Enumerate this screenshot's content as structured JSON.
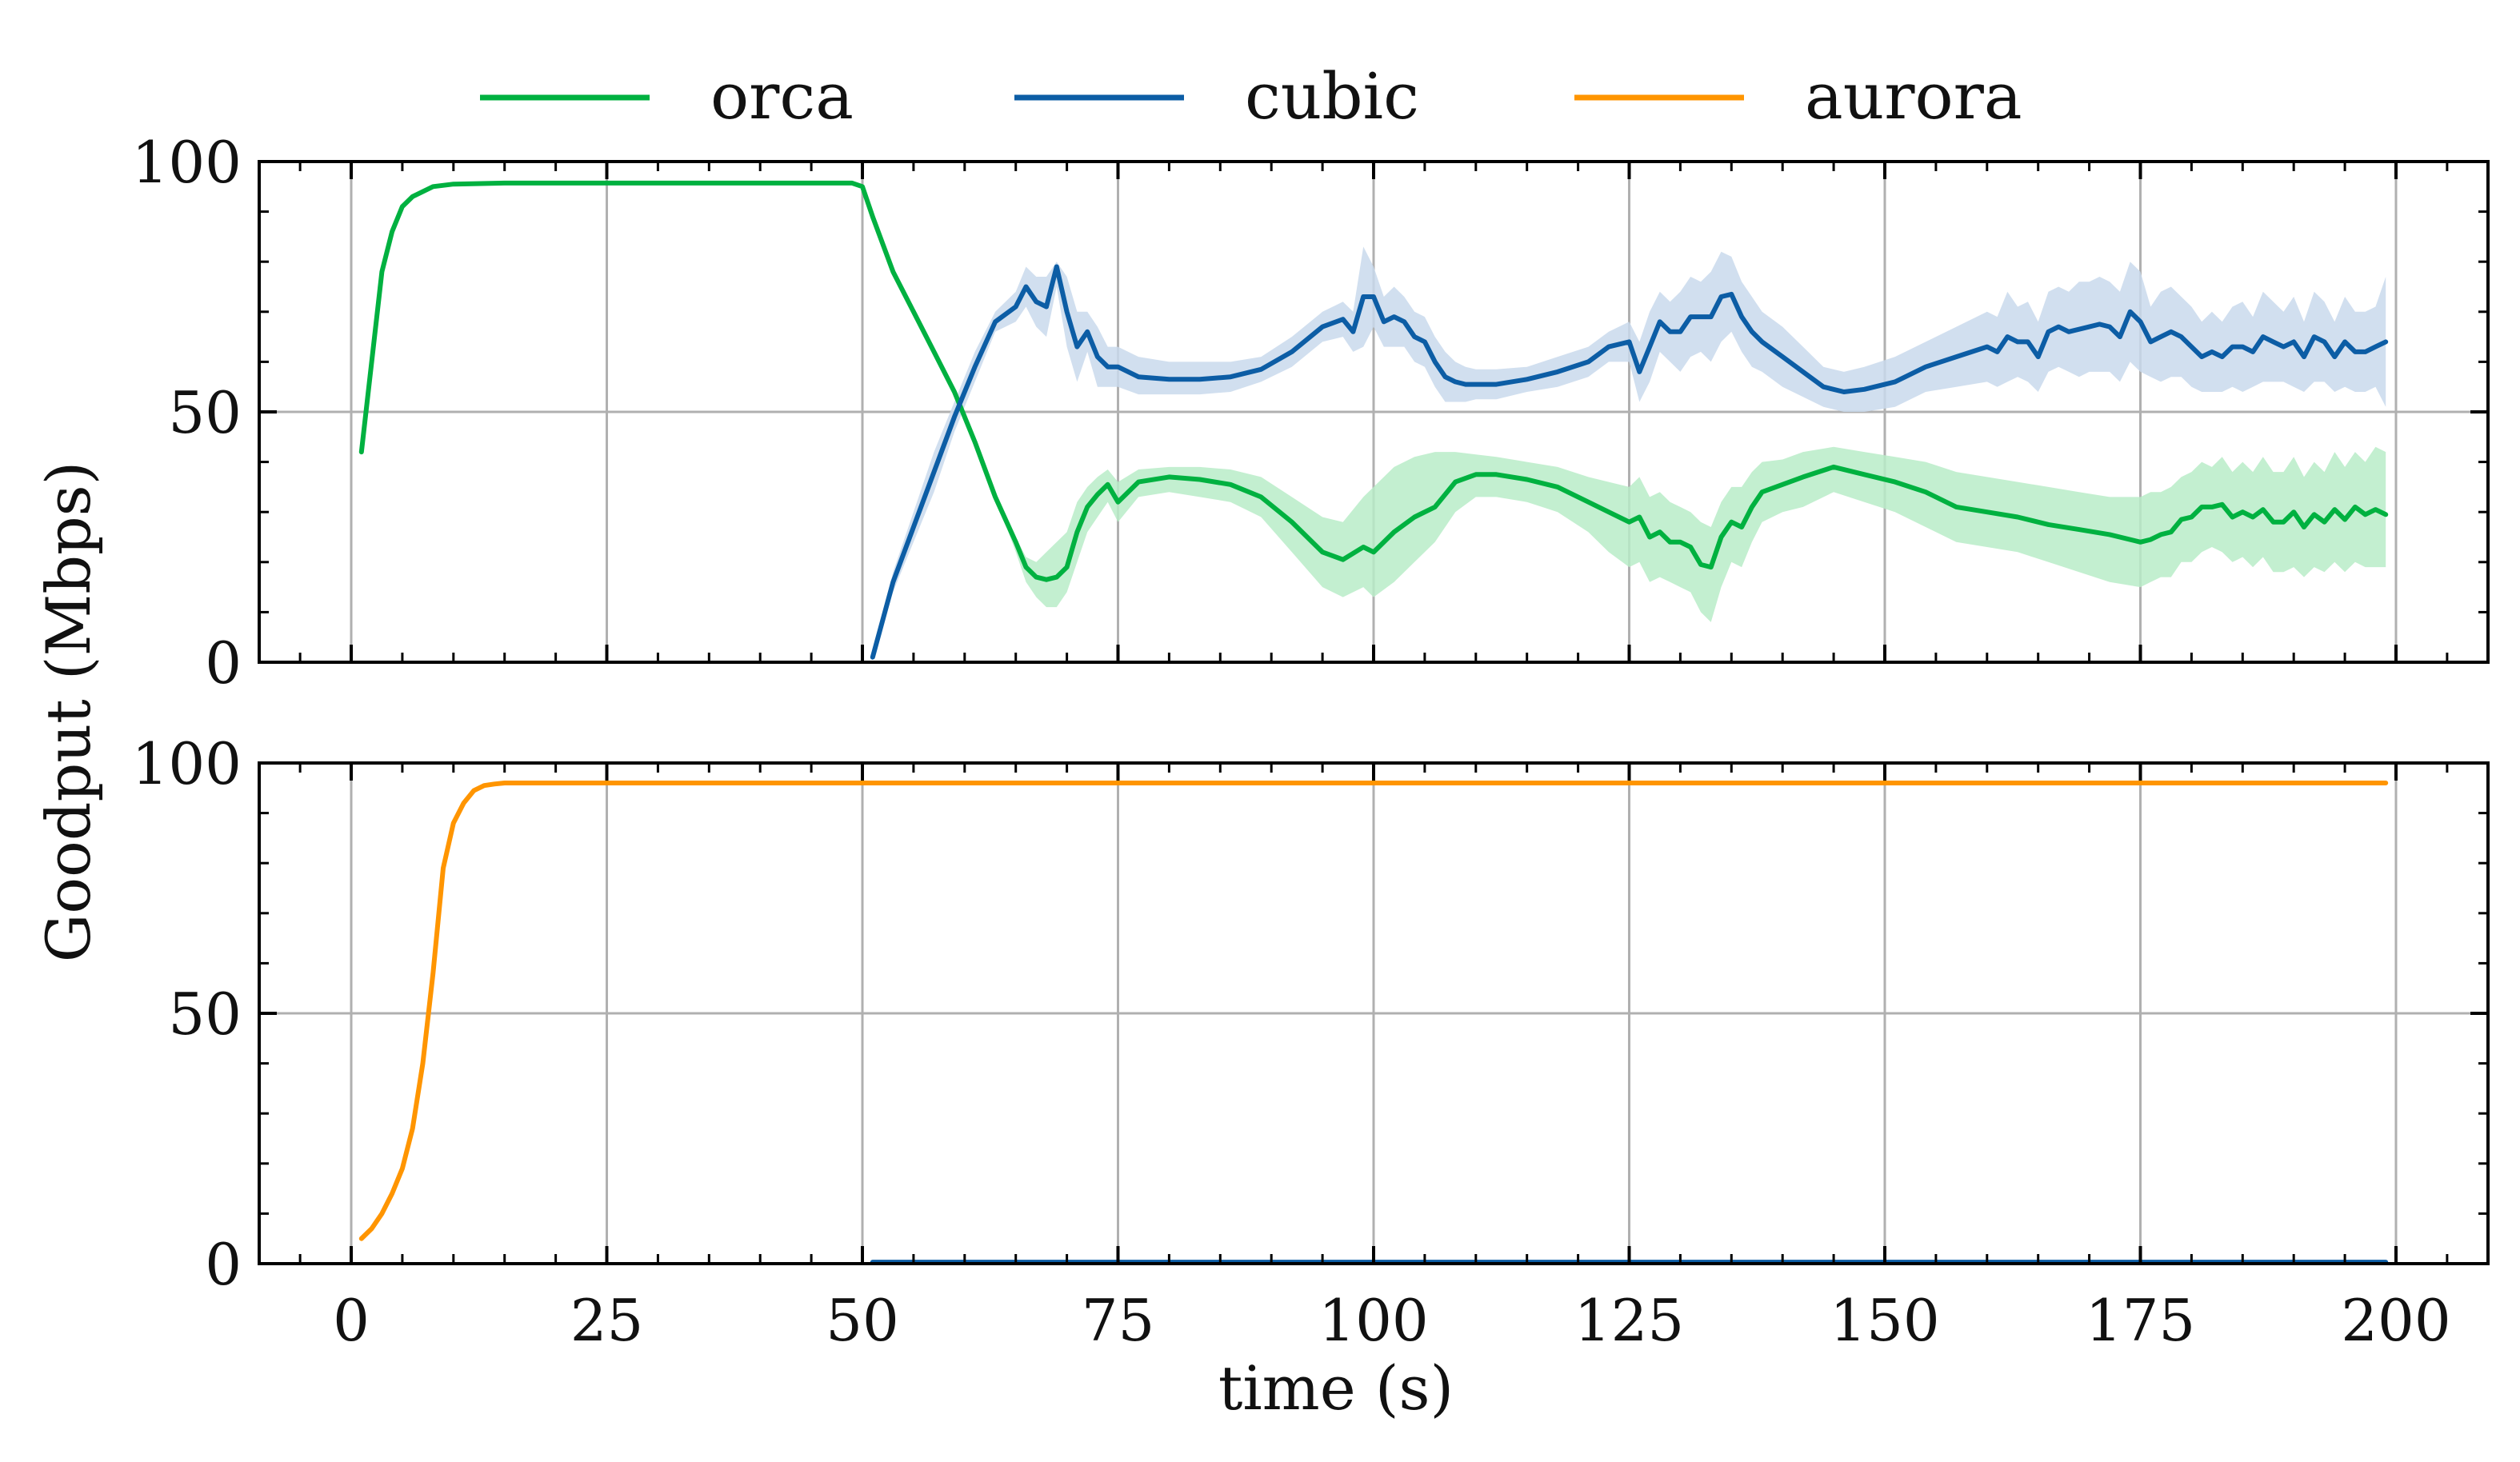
{
  "chart_data": {
    "type": "line",
    "xlabel": "time (s)",
    "ylabel": "Goodput (Mbps)",
    "xlim": [
      -9,
      209
    ],
    "xticks": [
      0,
      25,
      50,
      75,
      100,
      125,
      150,
      175,
      200
    ],
    "yticks": [
      0,
      50,
      100
    ],
    "ylim": [
      0,
      100
    ],
    "grid": true,
    "legend": {
      "position": "top-center",
      "entries": [
        {
          "name": "orca",
          "color": "#00b140"
        },
        {
          "name": "cubic",
          "color": "#0c5da5"
        },
        {
          "name": "aurora",
          "color": "#ff9500"
        }
      ]
    },
    "panels": [
      {
        "series": [
          {
            "name": "orca",
            "color": "#00b140",
            "band_color": "#b8ecc8",
            "x": [
              1,
              2,
              3,
              4,
              5,
              6,
              8,
              10,
              15,
              20,
              30,
              40,
              49,
              50,
              51,
              53,
              55,
              57,
              59,
              61,
              63,
              65,
              66,
              67,
              68,
              69,
              70,
              71,
              72,
              73,
              74,
              75,
              77,
              80,
              83,
              86,
              89,
              92,
              95,
              97,
              99,
              100,
              102,
              104,
              106,
              108,
              110,
              112,
              115,
              118,
              121,
              123,
              125,
              126,
              127,
              128,
              129,
              130,
              131,
              132,
              133,
              134,
              135,
              136,
              137,
              138,
              140,
              142,
              145,
              148,
              151,
              154,
              157,
              160,
              163,
              166,
              169,
              172,
              175,
              176,
              177,
              178,
              179,
              180,
              181,
              182,
              183,
              184,
              185,
              186,
              187,
              188,
              189,
              190,
              191,
              192,
              193,
              194,
              195,
              196,
              197,
              198,
              199
            ],
            "y": [
              42,
              60,
              78,
              86,
              91,
              93,
              95,
              95.5,
              95.7,
              95.7,
              95.7,
              95.7,
              95.7,
              95,
              89,
              78,
              70,
              62,
              54,
              44,
              33,
              24,
              19,
              17,
              16.5,
              17,
              19,
              26,
              31,
              33.5,
              35.5,
              32,
              36,
              37,
              36.5,
              35.5,
              33,
              28,
              22,
              20.5,
              23,
              22,
              26,
              29,
              31,
              36,
              37.5,
              37.5,
              36.5,
              35,
              32,
              30,
              28,
              29,
              25,
              26,
              24,
              24,
              23,
              19.5,
              19,
              25,
              28,
              27,
              31,
              34,
              35.5,
              37,
              39,
              37.5,
              36,
              34,
              31,
              30,
              29,
              27.5,
              26.5,
              25.5,
              24,
              24.5,
              25.5,
              26,
              28.5,
              29,
              31,
              31,
              31.5,
              29,
              30,
              29,
              30.5,
              28,
              28,
              30,
              27,
              29.5,
              28,
              30.5,
              28.5,
              31,
              29.5,
              30.5,
              29.5
            ],
            "band_upper": [
              42,
              60,
              78,
              86,
              91,
              93,
              95,
              95.5,
              95.7,
              95.7,
              95.7,
              95.7,
              95.7,
              95,
              89,
              78,
              70,
              62,
              54,
              44,
              33,
              25,
              21,
              20,
              22,
              24,
              26,
              32,
              35,
              37,
              38.5,
              36,
              38.5,
              39,
              39,
              38.5,
              37,
              33,
              29,
              28,
              33,
              35,
              39,
              41,
              42,
              42,
              41.5,
              41,
              40,
              39,
              37,
              36,
              35,
              37,
              33,
              34,
              32,
              31,
              30,
              28,
              27,
              32,
              35,
              35,
              38,
              40,
              40.5,
              42,
              43,
              42,
              41,
              40,
              38,
              37,
              36,
              35,
              34,
              33,
              33,
              34,
              34,
              35,
              37,
              38,
              40,
              39,
              41,
              38,
              40,
              38,
              41,
              38,
              38,
              41,
              37,
              40,
              38,
              42,
              39,
              42,
              40,
              43,
              42
            ],
            "band_lower": [
              42,
              60,
              78,
              86,
              91,
              93,
              95,
              95.5,
              95.7,
              95.7,
              95.7,
              95.7,
              95.7,
              95,
              89,
              78,
              70,
              62,
              54,
              44,
              33,
              22,
              16,
              13,
              11,
              11,
              14,
              20,
              26,
              29,
              32,
              28,
              33,
              34,
              33,
              32,
              29,
              22,
              15,
              13,
              15,
              13,
              16,
              20,
              24,
              30,
              33,
              33,
              32,
              30,
              26,
              22,
              19,
              20,
              16,
              17,
              16,
              15,
              14,
              10,
              8,
              15,
              20,
              19,
              24,
              28,
              30,
              31,
              34,
              32,
              30,
              27,
              24,
              23,
              22,
              20,
              18,
              16,
              15,
              16,
              17,
              17,
              20,
              20,
              22,
              23,
              22,
              20,
              21,
              19,
              21,
              18,
              18,
              19,
              17,
              19,
              18,
              20,
              18,
              20,
              19,
              19,
              19
            ]
          },
          {
            "name": "cubic",
            "color": "#0c5da5",
            "band_color": "#c9d9ec",
            "x": [
              51,
              53,
              55,
              57,
              59,
              61,
              63,
              65,
              66,
              67,
              68,
              69,
              70,
              71,
              72,
              73,
              74,
              75,
              77,
              80,
              83,
              86,
              89,
              92,
              95,
              97,
              98,
              99,
              100,
              101,
              102,
              103,
              104,
              105,
              106,
              107,
              108,
              109,
              110,
              112,
              115,
              118,
              121,
              123,
              125,
              126,
              127,
              128,
              129,
              130,
              131,
              132,
              133,
              134,
              135,
              136,
              137,
              138,
              140,
              142,
              144,
              146,
              148,
              151,
              154,
              157,
              160,
              161,
              162,
              163,
              164,
              165,
              166,
              167,
              168,
              169,
              170,
              171,
              172,
              173,
              174,
              175,
              176,
              177,
              178,
              179,
              180,
              181,
              182,
              183,
              184,
              185,
              186,
              187,
              188,
              189,
              190,
              191,
              192,
              193,
              194,
              195,
              196,
              197,
              198,
              199
            ],
            "y": [
              1,
              16,
              27,
              38,
              49,
              59,
              68,
              71,
              75,
              72,
              71,
              79,
              70,
              63,
              66,
              61,
              59,
              59,
              57,
              56.5,
              56.5,
              57,
              58.5,
              62,
              67,
              68.5,
              66,
              73,
              73,
              68,
              69,
              68,
              65,
              64,
              60,
              57,
              56,
              55.5,
              55.5,
              55.5,
              56.5,
              58,
              60,
              63,
              64,
              58,
              63,
              68,
              66,
              66,
              69,
              69,
              69,
              73,
              73.5,
              69,
              66,
              64,
              61,
              58,
              55,
              54,
              54.5,
              56,
              59,
              61,
              63,
              62,
              65,
              64,
              64,
              61,
              66,
              67,
              66,
              66.5,
              67,
              67.5,
              67,
              65,
              70,
              68,
              64,
              65,
              66,
              65,
              63,
              61,
              62,
              61,
              63,
              63,
              62,
              65,
              64,
              63,
              64,
              61,
              65,
              64,
              61,
              64,
              62,
              62,
              63,
              64
            ],
            "band_upper": [
              1,
              18,
              30,
              42,
              52,
              62,
              70,
              74,
              79,
              77,
              77,
              80,
              77,
              70,
              70,
              67,
              63,
              63,
              61,
              60,
              60,
              60,
              61,
              65,
              70,
              72,
              70,
              83,
              79,
              73,
              75,
              73,
              70,
              69,
              65,
              62,
              60,
              59,
              58.5,
              58.5,
              59,
              61,
              63,
              66,
              68,
              64,
              70,
              74,
              72,
              74,
              77,
              76,
              78,
              82,
              81,
              76,
              73,
              70,
              67,
              63,
              59,
              58,
              59,
              61,
              64,
              67,
              70,
              69,
              74,
              71,
              72,
              68,
              74,
              75,
              74,
              76,
              76,
              77,
              76,
              74,
              80,
              78,
              71,
              74,
              75,
              73,
              71,
              68,
              70,
              68,
              71,
              72,
              69,
              74,
              72,
              70,
              73,
              68,
              74,
              72,
              68,
              73,
              70,
              70,
              71,
              77
            ],
            "band_lower": [
              1,
              14,
              24,
              34,
              46,
              56,
              66,
              68,
              71,
              67,
              65,
              75,
              63,
              56,
              62,
              55,
              55,
              55,
              53.5,
              53.5,
              53.5,
              54,
              56,
              59,
              64,
              65,
              62,
              63,
              67,
              63,
              63,
              63,
              60,
              59,
              55,
              52,
              52,
              52,
              52.5,
              52.5,
              54,
              55,
              57,
              60,
              60,
              52,
              56,
              62,
              60,
              58,
              61,
              62,
              60,
              64,
              66,
              62,
              59,
              58,
              55,
              53,
              51,
              50,
              50,
              51,
              54,
              55,
              56,
              55,
              56,
              57,
              56,
              54,
              58,
              59,
              58,
              57,
              58,
              58,
              58,
              56,
              60,
              58,
              57,
              56,
              57,
              57,
              55,
              54,
              54,
              54,
              55,
              54,
              55,
              56,
              56,
              56,
              55,
              54,
              56,
              56,
              54,
              55,
              54,
              54,
              55,
              51
            ]
          }
        ]
      },
      {
        "series": [
          {
            "name": "aurora",
            "color": "#ff9500",
            "x": [
              1,
              2,
              3,
              4,
              5,
              6,
              7,
              8,
              9,
              10,
              11,
              12,
              13,
              14,
              15,
              17,
              20,
              30,
              50,
              100,
              150,
              199
            ],
            "y": [
              5,
              7,
              10,
              14,
              19,
              27,
              40,
              58,
              79,
              88,
              92,
              94.5,
              95.5,
              95.8,
              96,
              96,
              96,
              96,
              96,
              96,
              96,
              96
            ]
          },
          {
            "name": "cubic",
            "color": "#0c5da5",
            "x": [
              51,
              199
            ],
            "y": [
              0.3,
              0.3
            ]
          }
        ]
      }
    ]
  }
}
